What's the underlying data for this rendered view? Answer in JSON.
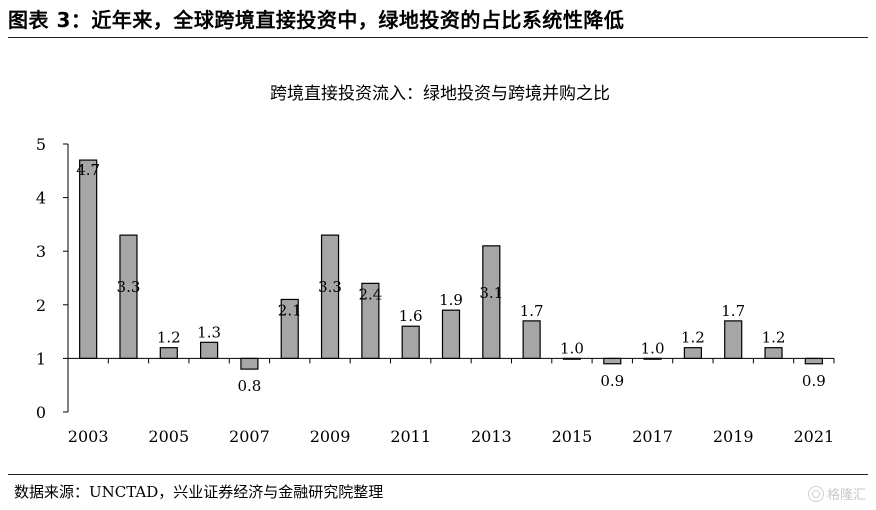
{
  "figure": {
    "title": "图表 3：近年来，全球跨境直接投资中，绿地投资的占比系统性降低",
    "source": "数据来源：UNCTAD，兴业证券经济与金融研究院整理",
    "watermark": "格隆汇"
  },
  "chart_data": {
    "type": "bar",
    "title": "跨境直接投资流入：绿地投资与跨境并购之比",
    "categories": [
      "2003",
      "2004",
      "2005",
      "2006",
      "2007",
      "2008",
      "2009",
      "2010",
      "2011",
      "2012",
      "2013",
      "2014",
      "2015",
      "2016",
      "2017",
      "2018",
      "2019",
      "2020",
      "2021"
    ],
    "x_tick_labels": [
      "2003",
      "2005",
      "2007",
      "2009",
      "2011",
      "2013",
      "2015",
      "2017",
      "2019",
      "2021"
    ],
    "values": [
      4.7,
      3.3,
      1.2,
      1.3,
      0.8,
      2.1,
      3.3,
      2.4,
      1.6,
      1.9,
      3.1,
      1.7,
      1.0,
      0.9,
      1.0,
      1.2,
      1.7,
      1.2,
      0.9
    ],
    "data_labels": [
      "4.7",
      "3.3",
      "1.2",
      "1.3",
      "0.8",
      "2.1",
      "3.3",
      "2.4",
      "1.6",
      "1.9",
      "3.1",
      "1.7",
      "1.0",
      "0.9",
      "1.0",
      "1.2",
      "1.7",
      "1.2",
      "0.9"
    ],
    "y_ticks": [
      "0",
      "1",
      "2",
      "3",
      "4",
      "5"
    ],
    "ylim": [
      0,
      5
    ],
    "baseline": 1,
    "bar_color": "#a6a6a6",
    "bar_edge_color": "#000000",
    "grid": false,
    "xlabel": "",
    "ylabel": ""
  }
}
